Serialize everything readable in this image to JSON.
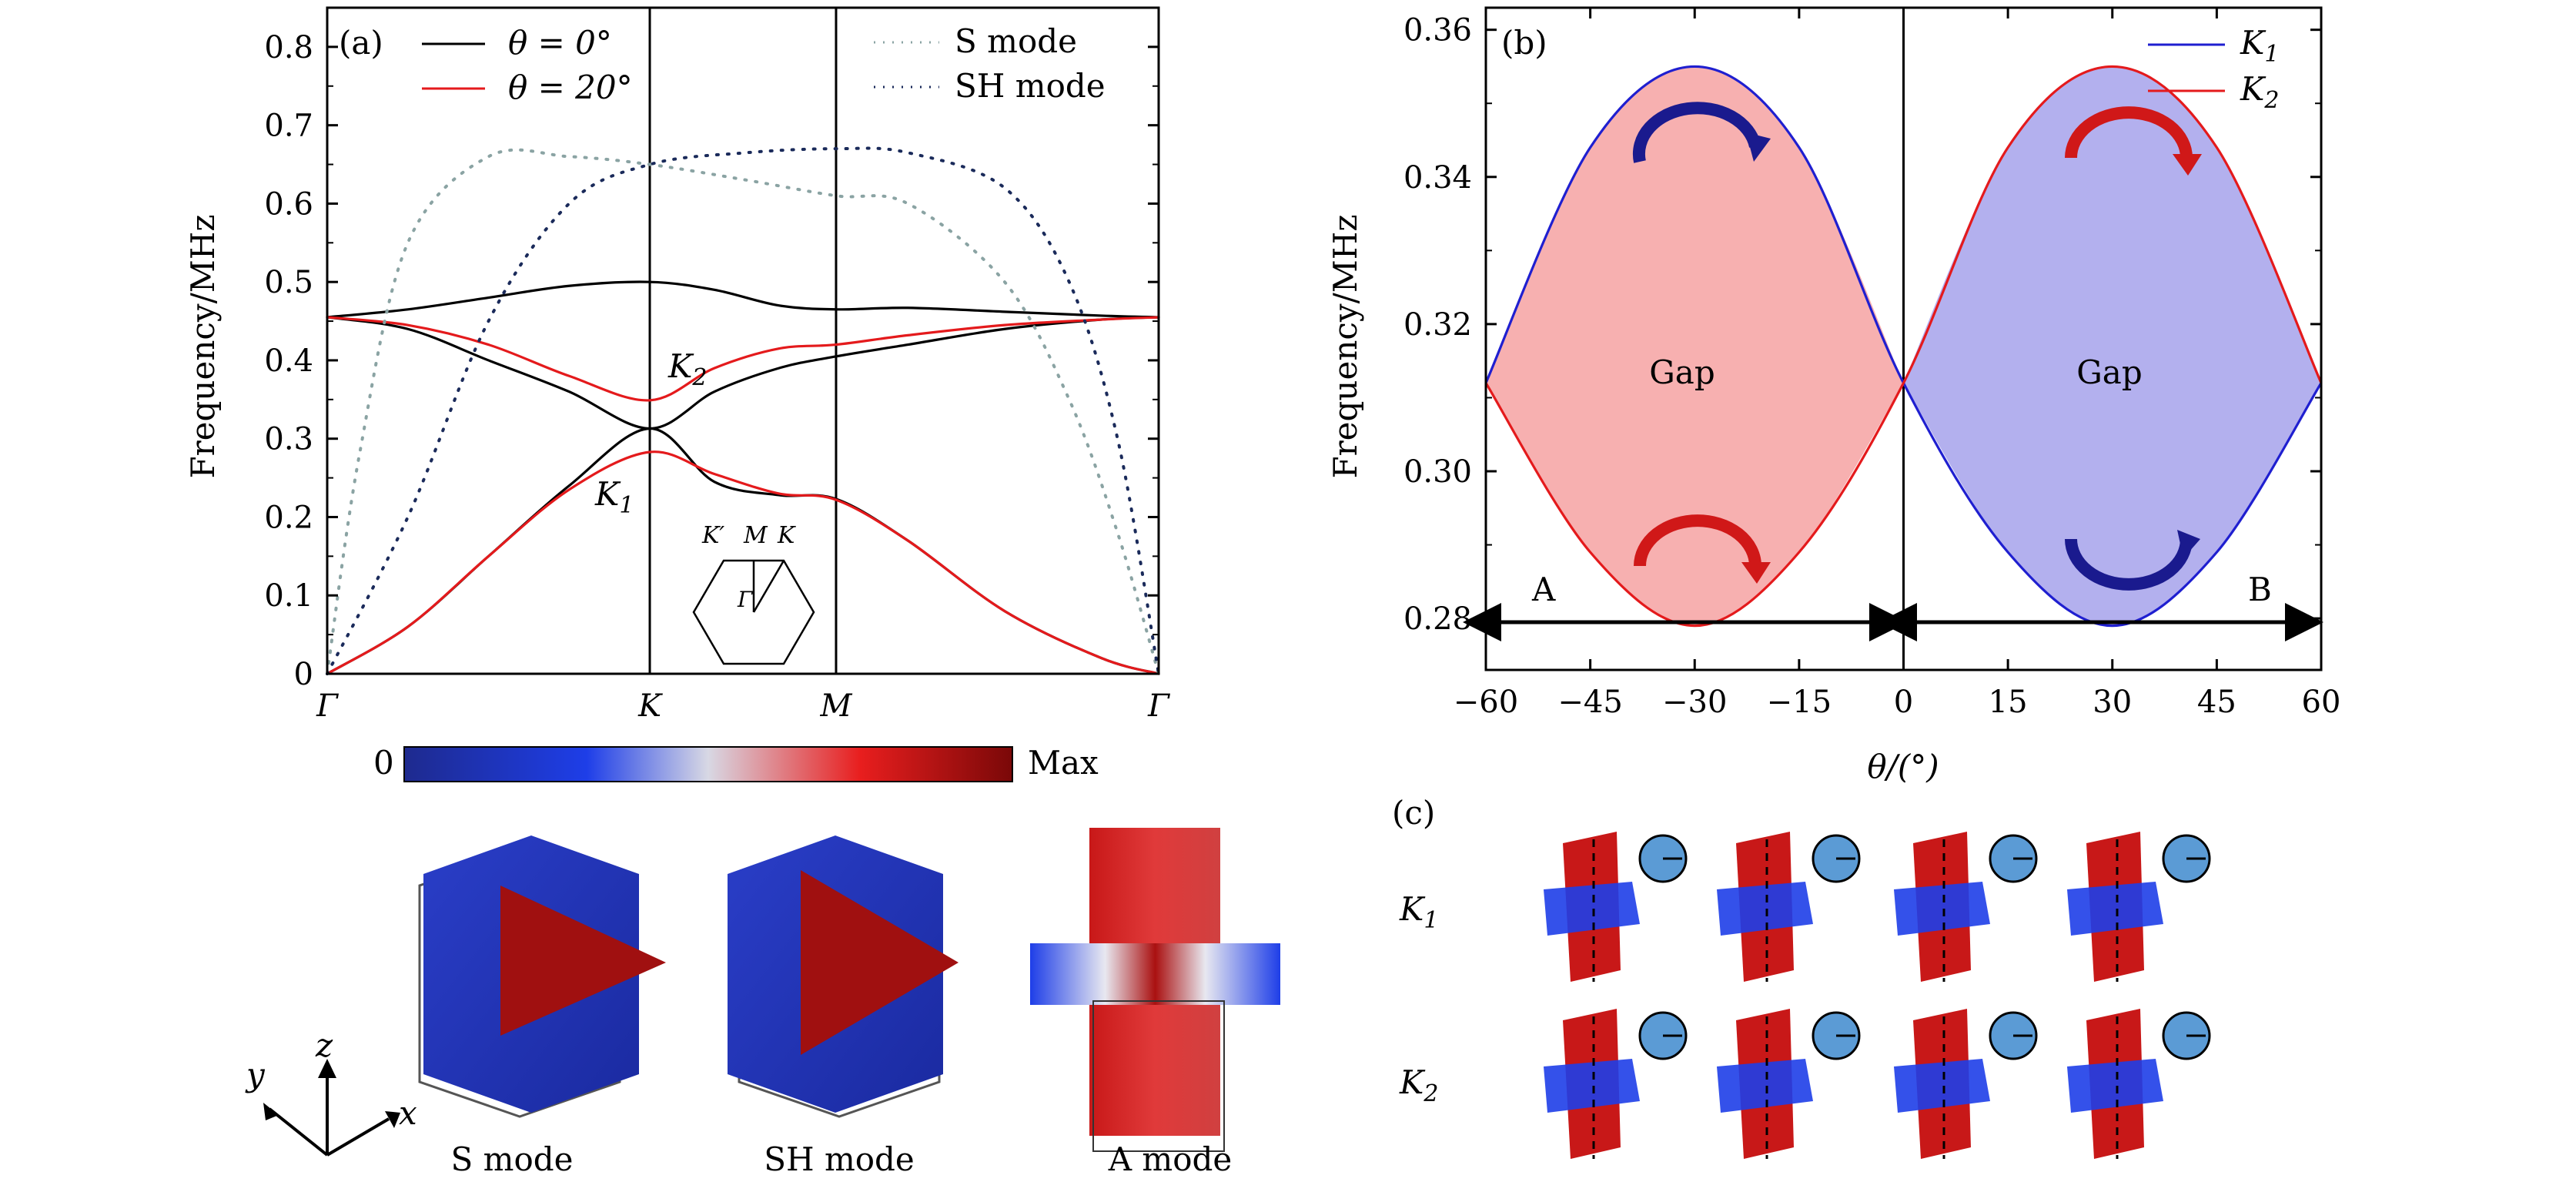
{
  "panel_a": {
    "label": "(a)",
    "ylabel": "Frequency/MHz",
    "legend_left": [
      "θ = 0°",
      "θ = 20°"
    ],
    "legend_right": [
      "S mode",
      "SH mode"
    ],
    "annotations": [
      "K2",
      "K1"
    ],
    "inset_labels": [
      "K′",
      "M",
      "K",
      "Γ"
    ],
    "colors": {
      "theta0": "#000000",
      "theta20": "#e41a1c",
      "s_mode": "#8aa3a3",
      "sh_mode": "#1a2a5a"
    }
  },
  "panel_b": {
    "label": "(b)",
    "ylabel": "Frequency/MHz",
    "xlabel": "θ/(°)",
    "legend": [
      "K1",
      "K2"
    ],
    "gap_labels": [
      "Gap",
      "Gap"
    ],
    "region_labels": [
      "A",
      "B"
    ],
    "colors": {
      "K1": "#1f1fd0",
      "K2": "#e41a1c",
      "fill_left": "#f7b0b0",
      "fill_right": "#b3b0ee"
    }
  },
  "colorbar": {
    "min_label": "0",
    "max_label": "Max"
  },
  "mode_labels": [
    "S mode",
    "SH mode",
    "A mode"
  ],
  "axes_labels": [
    "y",
    "z",
    "x"
  ],
  "panel_c": {
    "label": "(c)",
    "rows": [
      "K1",
      "K2"
    ]
  },
  "chart_data": [
    {
      "type": "line",
      "title": "",
      "ylabel": "Frequency/MHz",
      "xlabel": "",
      "x_ticks": [
        "Γ",
        "K",
        "M",
        "Γ"
      ],
      "x_positions": [
        0,
        1,
        1.5774,
        2.5774
      ],
      "ylim": [
        0,
        0.85
      ],
      "y_ticks": [
        0,
        0.1,
        0.2,
        0.3,
        0.4,
        0.5,
        0.6,
        0.7,
        0.8
      ],
      "series": [
        {
          "name": "θ = 0°",
          "x": [
            0,
            0.25,
            0.5,
            0.75,
            1,
            1.2,
            1.4,
            1.5774,
            1.8,
            2.1,
            2.4,
            2.5774
          ],
          "values": [
            0,
            0.06,
            0.15,
            0.24,
            0.313,
            0.245,
            0.228,
            0.223,
            0.17,
            0.08,
            0.02,
            0
          ]
        },
        {
          "name": "θ = 0°",
          "x": [
            0,
            0.25,
            0.5,
            0.75,
            1,
            1.2,
            1.4,
            1.5774,
            1.8,
            2.1,
            2.4,
            2.5774
          ],
          "values": [
            0.455,
            0.44,
            0.4,
            0.36,
            0.313,
            0.36,
            0.39,
            0.405,
            0.42,
            0.44,
            0.452,
            0.455
          ]
        },
        {
          "name": "θ = 0°",
          "x": [
            0,
            0.25,
            0.5,
            0.75,
            1,
            1.2,
            1.4,
            1.5774,
            1.8,
            2.1,
            2.4,
            2.5774
          ],
          "values": [
            0.455,
            0.465,
            0.48,
            0.495,
            0.5,
            0.49,
            0.47,
            0.465,
            0.467,
            0.462,
            0.457,
            0.455
          ]
        },
        {
          "name": "θ = 20°",
          "x": [
            0,
            0.25,
            0.5,
            0.75,
            1,
            1.2,
            1.4,
            1.5774,
            1.8,
            2.1,
            2.4,
            2.5774
          ],
          "values": [
            0,
            0.06,
            0.15,
            0.235,
            0.283,
            0.255,
            0.23,
            0.222,
            0.17,
            0.08,
            0.02,
            0
          ]
        },
        {
          "name": "θ = 20°",
          "x": [
            0,
            0.25,
            0.5,
            0.75,
            1,
            1.2,
            1.4,
            1.5774,
            1.8,
            2.1,
            2.4,
            2.5774
          ],
          "values": [
            0.455,
            0.445,
            0.42,
            0.38,
            0.349,
            0.39,
            0.415,
            0.42,
            0.432,
            0.445,
            0.452,
            0.455
          ]
        },
        {
          "name": "S mode",
          "x": [
            0,
            0.1,
            0.25,
            0.5,
            0.75,
            1,
            1.3,
            1.5774,
            1.8,
            2.1,
            2.3,
            2.45,
            2.5774
          ],
          "values": [
            0,
            0.28,
            0.55,
            0.66,
            0.66,
            0.65,
            0.63,
            0.61,
            0.6,
            0.5,
            0.35,
            0.18,
            0
          ]
        },
        {
          "name": "SH mode",
          "x": [
            0,
            0.25,
            0.5,
            0.75,
            1,
            1.3,
            1.5774,
            1.8,
            2.1,
            2.3,
            2.45,
            2.5774
          ],
          "values": [
            0,
            0.2,
            0.45,
            0.6,
            0.65,
            0.665,
            0.67,
            0.665,
            0.62,
            0.5,
            0.3,
            0
          ]
        }
      ]
    },
    {
      "type": "area",
      "title": "",
      "ylabel": "Frequency/MHz",
      "xlabel": "θ/(°)",
      "xlim": [
        -60,
        60
      ],
      "ylim": [
        0.273,
        0.363
      ],
      "x_ticks": [
        -60,
        -45,
        -30,
        -15,
        0,
        15,
        30,
        45,
        60
      ],
      "y_ticks": [
        0.28,
        0.3,
        0.32,
        0.34,
        0.36
      ],
      "series": [
        {
          "name": "K1",
          "x": [
            -60,
            -45,
            -30,
            -15,
            0,
            15,
            30,
            45,
            60
          ],
          "values": [
            0.312,
            0.344,
            0.355,
            0.344,
            0.312,
            0.289,
            0.279,
            0.289,
            0.312
          ]
        },
        {
          "name": "K2",
          "x": [
            -60,
            -45,
            -30,
            -15,
            0,
            15,
            30,
            45,
            60
          ],
          "values": [
            0.312,
            0.289,
            0.279,
            0.289,
            0.312,
            0.344,
            0.355,
            0.344,
            0.312
          ]
        }
      ]
    }
  ]
}
